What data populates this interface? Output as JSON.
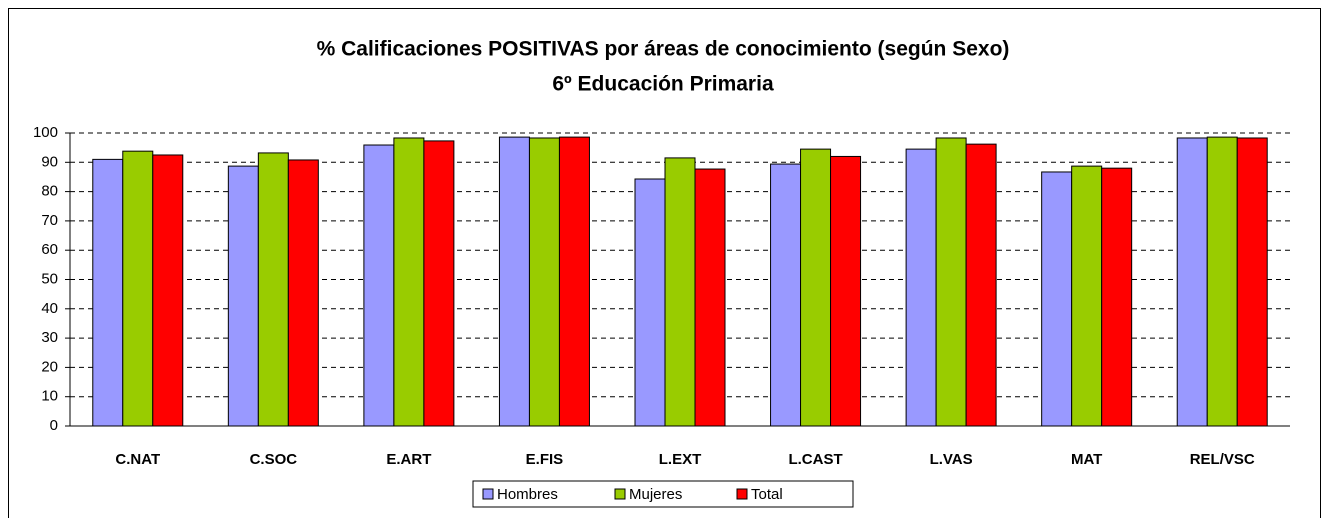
{
  "chart_data": {
    "type": "bar",
    "title": "% Calificaciones POSITIVAS por áreas de conocimiento (según Sexo)",
    "subtitle": "6º Educación Primaria",
    "categories": [
      "C.NAT",
      "C.SOC",
      "E.ART",
      "E.FIS",
      "L.EXT",
      "L.CAST",
      "L.VAS",
      "MAT",
      "REL/VSC"
    ],
    "series": [
      {
        "name": "Hombres",
        "color": "#9999ff",
        "values": [
          91,
          88.7,
          95.9,
          98.6,
          84.3,
          89.4,
          94.5,
          86.7,
          98.3
        ]
      },
      {
        "name": "Mujeres",
        "color": "#99cc00",
        "values": [
          93.8,
          93.2,
          98.3,
          98.3,
          91.5,
          94.5,
          98.3,
          88.7,
          98.6
        ]
      },
      {
        "name": "Total",
        "color": "#ff0000",
        "values": [
          92.5,
          90.8,
          97.3,
          98.6,
          87.7,
          92,
          96.2,
          88,
          98.3
        ]
      }
    ],
    "ylim": [
      0,
      100
    ],
    "yticks": [
      0,
      10,
      20,
      30,
      40,
      50,
      60,
      70,
      80,
      90,
      100
    ],
    "grid": true,
    "legend": "bottom"
  }
}
